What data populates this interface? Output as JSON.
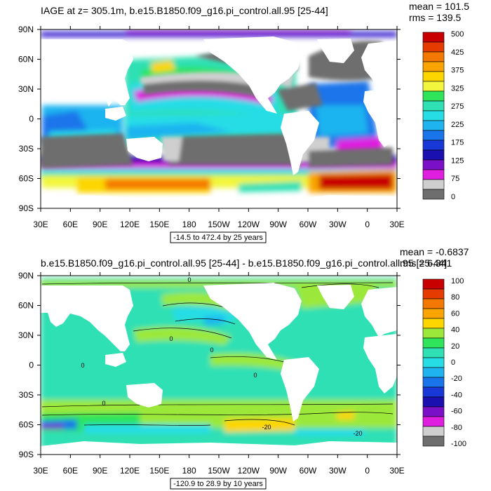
{
  "chart_data": [
    {
      "type": "heatmap",
      "title": "IAGE at z= 305.1m, b.e15.B1850.f09_g16.pi_control.all.95 [25-44]",
      "stats": {
        "mean": "mean = 101.5",
        "rms": "rms = 139.5"
      },
      "range_label": "-14.5 to 472.4 by 25 years",
      "x_ticks": [
        "30E",
        "60E",
        "90E",
        "120E",
        "150E",
        "180",
        "150W",
        "120W",
        "90W",
        "60W",
        "30W",
        "0",
        "30E"
      ],
      "y_ticks": [
        "90N",
        "60N",
        "30N",
        "0",
        "30S",
        "60S",
        "90S"
      ],
      "colorbar": {
        "labels": [
          "500",
          "425",
          "375",
          "325",
          "275",
          "225",
          "175",
          "125",
          "75",
          "0"
        ],
        "colors": [
          "#c80000",
          "#e53a00",
          "#f37800",
          "#f9a400",
          "#fdd600",
          "#f2f63c",
          "#2fe35a",
          "#2fe0b4",
          "#26dde6",
          "#1fb4f0",
          "#1a74ea",
          "#1838d8",
          "#1a10b0",
          "#7a10c8",
          "#e01ee0",
          "#cfcfcf",
          "#6e6e6e"
        ]
      }
    },
    {
      "type": "heatmap",
      "title": "b.e15.B1850.f09_g16.pi_control.all.95 [25-44] - b.e15.B1850.f09_g16.pi_control.all.95 [25-44]",
      "stats": {
        "mean": "mean = -0.6837",
        "rms": "rms = 6.341"
      },
      "range_label": "-120.9 to 28.9 by 10 years",
      "x_ticks": [
        "30E",
        "60E",
        "90E",
        "120E",
        "150E",
        "180",
        "150W",
        "120W",
        "90W",
        "60W",
        "30W",
        "0",
        "30E"
      ],
      "y_ticks": [
        "90N",
        "60N",
        "30N",
        "0",
        "30S",
        "60S",
        "90S"
      ],
      "contour_labels": [
        "0",
        "0",
        "0",
        "0",
        "0",
        "0",
        "-20",
        "-20"
      ],
      "colorbar": {
        "labels": [
          "100",
          "80",
          "60",
          "40",
          "20",
          "0",
          "-20",
          "-40",
          "-60",
          "-80",
          "-100"
        ],
        "colors": [
          "#c80000",
          "#e53a00",
          "#f37800",
          "#f9a400",
          "#fdd600",
          "#9be83a",
          "#2fe35a",
          "#2fe0b4",
          "#26dde6",
          "#1fb4f0",
          "#1a74ea",
          "#1838d8",
          "#1a10b0",
          "#7a10c8",
          "#e01ee0",
          "#cfcfcf",
          "#6e6e6e"
        ]
      }
    }
  ]
}
